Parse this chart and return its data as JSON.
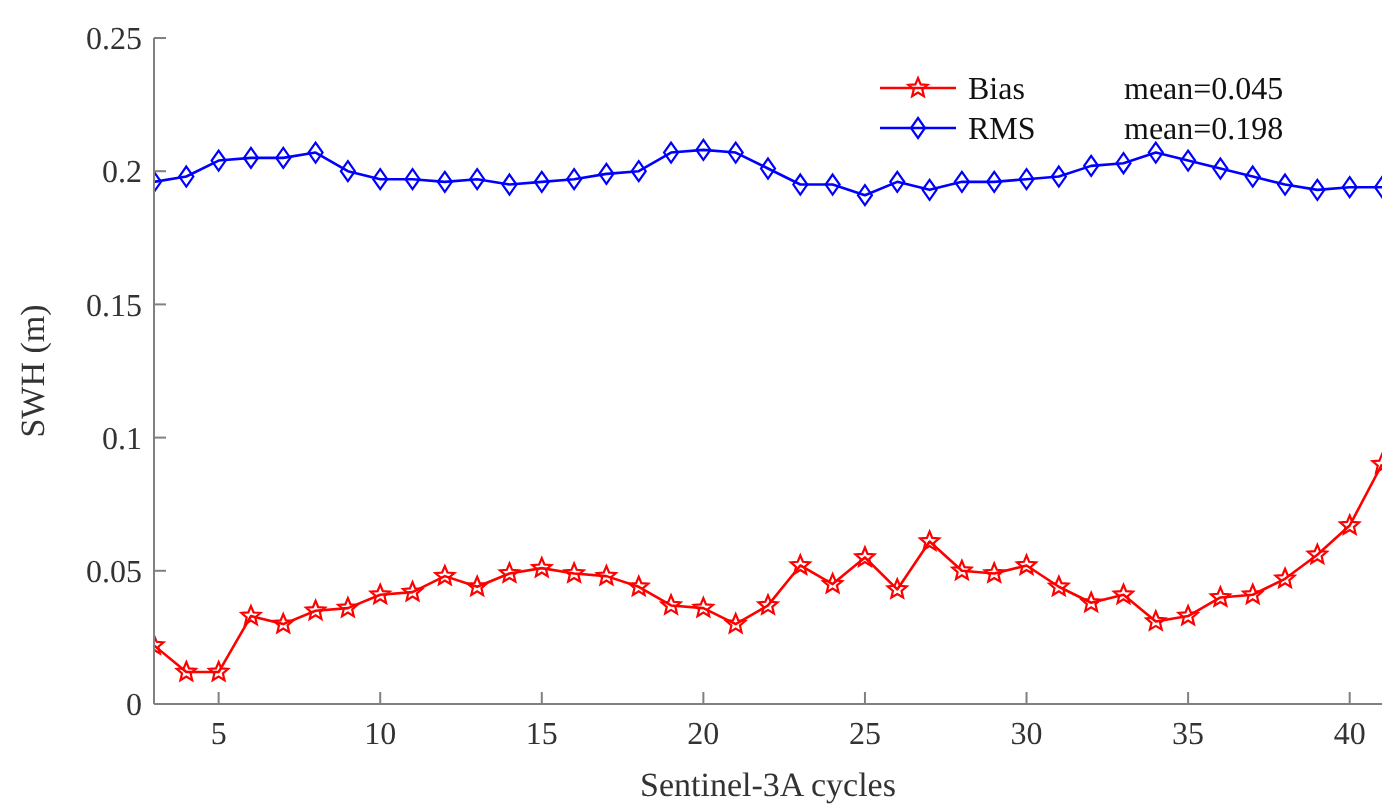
{
  "chart_data": {
    "type": "line",
    "xlabel": "Sentinel-3A cycles",
    "ylabel": "SWH (m)",
    "x": [
      3,
      4,
      5,
      6,
      7,
      8,
      9,
      10,
      11,
      12,
      13,
      14,
      15,
      16,
      17,
      18,
      19,
      20,
      21,
      22,
      23,
      24,
      25,
      26,
      27,
      28,
      29,
      30,
      31,
      32,
      33,
      34,
      35,
      36,
      37,
      38,
      39,
      40,
      41
    ],
    "series": [
      {
        "name": "Bias",
        "color": "#ff0000",
        "marker": "star",
        "values": [
          0.022,
          0.012,
          0.012,
          0.033,
          0.03,
          0.035,
          0.036,
          0.041,
          0.042,
          0.048,
          0.044,
          0.049,
          0.051,
          0.049,
          0.048,
          0.044,
          0.037,
          0.036,
          0.03,
          0.037,
          0.052,
          0.045,
          0.055,
          0.043,
          0.061,
          0.05,
          0.049,
          0.052,
          0.044,
          0.038,
          0.041,
          0.031,
          0.033,
          0.04,
          0.041,
          0.047,
          0.056,
          0.067,
          0.09
        ]
      },
      {
        "name": "RMS",
        "color": "#0000ff",
        "marker": "diamond",
        "values": [
          0.196,
          0.198,
          0.204,
          0.205,
          0.205,
          0.207,
          0.2,
          0.197,
          0.197,
          0.196,
          0.197,
          0.195,
          0.196,
          0.197,
          0.199,
          0.2,
          0.207,
          0.208,
          0.207,
          0.201,
          0.195,
          0.195,
          0.191,
          0.196,
          0.193,
          0.196,
          0.196,
          0.197,
          0.198,
          0.202,
          0.203,
          0.207,
          0.204,
          0.201,
          0.198,
          0.195,
          0.193,
          0.194,
          0.194
        ]
      }
    ],
    "annotations": [
      "mean=0.045",
      "mean=0.198"
    ],
    "xlim": [
      3,
      41
    ],
    "xticks": [
      5,
      10,
      15,
      20,
      25,
      30,
      35,
      40
    ],
    "ylim": [
      0,
      0.25
    ],
    "yticks": [
      0,
      {
        "value": 0.05,
        "label": "0.05"
      },
      {
        "value": 0.1,
        "label": "0.1"
      },
      {
        "value": 0.15,
        "label": "0.15"
      },
      {
        "value": 0.2,
        "label": "0.2"
      },
      {
        "value": 0.25,
        "label": "0.25"
      }
    ],
    "legend": "top right",
    "grid": false,
    "line_style": "solid"
  }
}
